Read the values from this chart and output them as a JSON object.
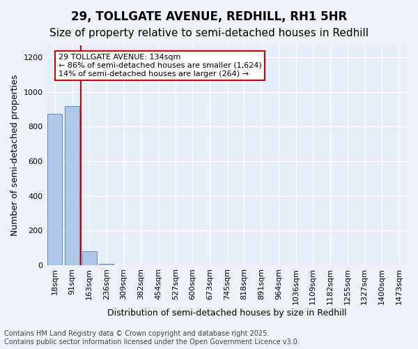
{
  "title": "29, TOLLGATE AVENUE, REDHILL, RH1 5HR",
  "subtitle": "Size of property relative to semi-detached houses in Redhill",
  "xlabel": "Distribution of semi-detached houses by size in Redhill",
  "ylabel": "Number of semi-detached properties",
  "footer_line1": "Contains HM Land Registry data © Crown copyright and database right 2025.",
  "footer_line2": "Contains public sector information licensed under the Open Government Licence v3.0.",
  "bin_labels": [
    "18sqm",
    "91sqm",
    "163sqm",
    "236sqm",
    "309sqm",
    "382sqm",
    "454sqm",
    "527sqm",
    "600sqm",
    "673sqm",
    "745sqm",
    "818sqm",
    "891sqm",
    "964sqm",
    "1036sqm",
    "1109sqm",
    "1182sqm",
    "1255sqm",
    "1327sqm",
    "1400sqm",
    "1473sqm"
  ],
  "bar_values": [
    875,
    920,
    80,
    5,
    0,
    0,
    0,
    0,
    0,
    0,
    0,
    0,
    0,
    0,
    0,
    0,
    0,
    0,
    0,
    0,
    0
  ],
  "bar_color": "#aec6e8",
  "bar_edge_color": "#5a8fc2",
  "background_color": "#e8eef7",
  "grid_color": "#ffffff",
  "ylim": [
    0,
    1270
  ],
  "yticks": [
    0,
    200,
    400,
    600,
    800,
    1000,
    1200
  ],
  "property_line_color": "#cc0000",
  "annotation_line1": "29 TOLLGATE AVENUE: 134sqm",
  "annotation_line2": "← 86% of semi-detached houses are smaller (1,624)",
  "annotation_line3": "14% of semi-detached houses are larger (264) →",
  "annotation_box_color": "#cc0000",
  "title_fontsize": 12,
  "subtitle_fontsize": 11,
  "axis_label_fontsize": 9,
  "tick_fontsize": 8,
  "annotation_fontsize": 8,
  "footer_fontsize": 7
}
